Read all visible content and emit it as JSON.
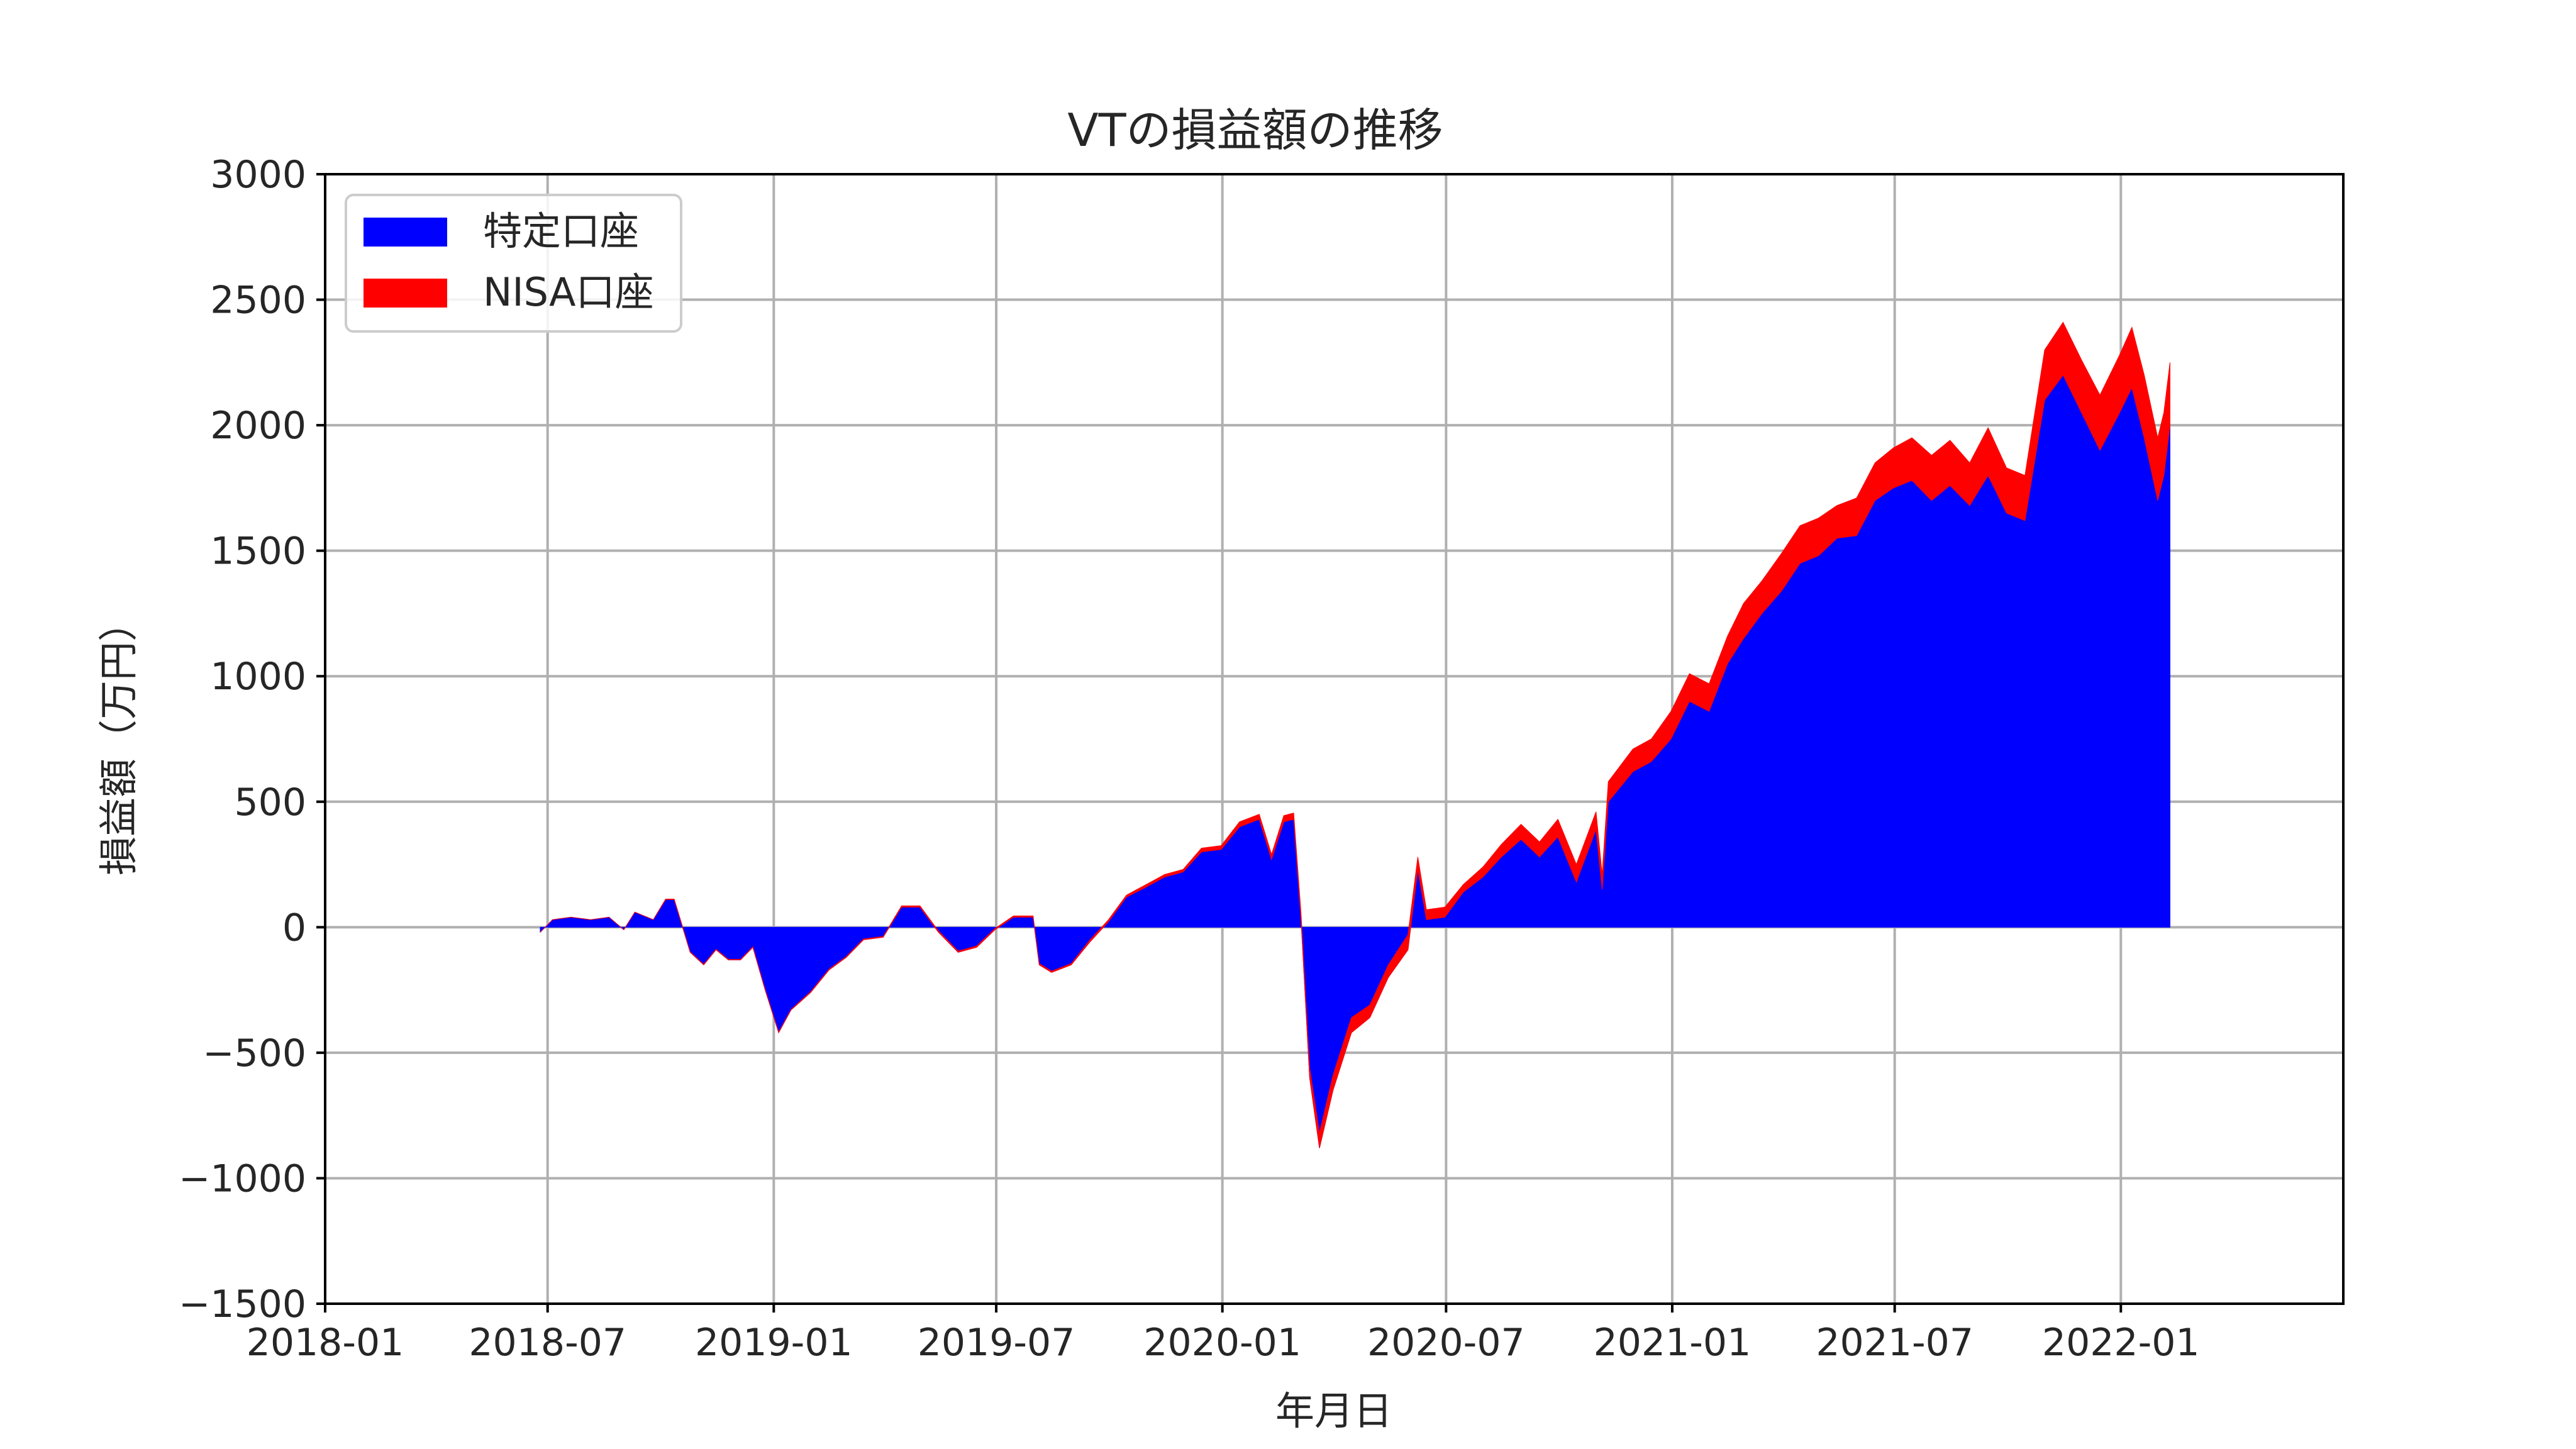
{
  "chart_data": {
    "type": "area",
    "stacked": true,
    "title": "VTの損益額の推移",
    "xlabel": "年月日",
    "ylabel": "損益額（万円）",
    "xlim": [
      "2018-01-01",
      "2022-07-01"
    ],
    "ylim": [
      -1500,
      3000
    ],
    "x_ticks": [
      "2018-01",
      "2018-07",
      "2019-01",
      "2019-07",
      "2020-01",
      "2020-07",
      "2021-01",
      "2021-07",
      "2022-01"
    ],
    "y_ticks": [
      3000,
      2500,
      2000,
      1500,
      1000,
      500,
      0,
      -500,
      -1000,
      -1500
    ],
    "y_tick_labels": [
      "3000",
      "2500",
      "2000",
      "1500",
      "1000",
      "500",
      "0",
      "−500",
      "−1000",
      "−1500"
    ],
    "grid": true,
    "legend_position": "upper-left",
    "colors": {
      "特定口座": "#0000ff",
      "NISA口座": "#ff0000",
      "grid": "#b0b0b0"
    },
    "dates": [
      "2018-06-25",
      "2018-07-05",
      "2018-07-20",
      "2018-08-05",
      "2018-08-20",
      "2018-09-01",
      "2018-09-10",
      "2018-09-25",
      "2018-10-05",
      "2018-10-12",
      "2018-10-25",
      "2018-11-05",
      "2018-11-15",
      "2018-11-25",
      "2018-12-05",
      "2018-12-15",
      "2018-12-25",
      "2019-01-05",
      "2019-01-15",
      "2019-01-31",
      "2019-02-15",
      "2019-03-01",
      "2019-03-15",
      "2019-03-31",
      "2019-04-15",
      "2019-04-30",
      "2019-05-15",
      "2019-05-31",
      "2019-06-15",
      "2019-06-30",
      "2019-07-15",
      "2019-07-31",
      "2019-08-05",
      "2019-08-15",
      "2019-08-31",
      "2019-09-15",
      "2019-09-30",
      "2019-10-15",
      "2019-10-31",
      "2019-11-15",
      "2019-11-30",
      "2019-12-15",
      "2019-12-31",
      "2020-01-15",
      "2020-01-31",
      "2020-02-10",
      "2020-02-20",
      "2020-02-28",
      "2020-03-05",
      "2020-03-12",
      "2020-03-20",
      "2020-03-31",
      "2020-04-15",
      "2020-04-30",
      "2020-05-15",
      "2020-05-31",
      "2020-06-08",
      "2020-06-15",
      "2020-06-30",
      "2020-07-15",
      "2020-07-31",
      "2020-08-15",
      "2020-08-31",
      "2020-09-15",
      "2020-09-30",
      "2020-10-15",
      "2020-10-31",
      "2020-11-05",
      "2020-11-10",
      "2020-11-30",
      "2020-12-15",
      "2020-12-31",
      "2021-01-15",
      "2021-01-31",
      "2021-02-15",
      "2021-02-28",
      "2021-03-15",
      "2021-03-31",
      "2021-04-15",
      "2021-04-30",
      "2021-05-15",
      "2021-05-31",
      "2021-06-15",
      "2021-06-30",
      "2021-07-15",
      "2021-07-31",
      "2021-08-15",
      "2021-08-31",
      "2021-09-15",
      "2021-09-30",
      "2021-10-15",
      "2021-10-31",
      "2021-11-15",
      "2021-11-30",
      "2021-12-15",
      "2021-12-31",
      "2022-01-10",
      "2022-01-20",
      "2022-01-31",
      "2022-02-05",
      "2022-02-10"
    ],
    "series": [
      {
        "name": "特定口座",
        "color": "#0000ff",
        "values": [
          -20,
          30,
          40,
          30,
          40,
          -10,
          60,
          30,
          110,
          110,
          -100,
          -150,
          -90,
          -130,
          -130,
          -80,
          -250,
          -420,
          -330,
          -260,
          -170,
          -120,
          -50,
          -40,
          80,
          80,
          -20,
          -100,
          -80,
          -10,
          40,
          40,
          -150,
          -180,
          -150,
          -60,
          20,
          120,
          160,
          200,
          220,
          300,
          310,
          400,
          430,
          270,
          420,
          430,
          30,
          -600,
          -880,
          -650,
          -420,
          -360,
          -200,
          -90,
          230,
          30,
          40,
          140,
          200,
          280,
          350,
          280,
          360,
          180,
          390,
          150,
          500,
          620,
          660,
          750,
          900,
          860,
          1050,
          1150,
          1250,
          1340,
          1450,
          1480,
          1550,
          1560,
          1700,
          1750,
          1780,
          1700,
          1760,
          1680,
          1800,
          1650,
          1620,
          2100,
          2200,
          2050,
          1900,
          2050,
          2150,
          1950,
          1700,
          1800,
          2000
        ]
      },
      {
        "name": "NISA口座",
        "color": "#ff0000",
        "values": [
          0,
          0,
          0,
          0,
          0,
          0,
          0,
          0,
          2,
          2,
          2,
          2,
          2,
          2,
          2,
          2,
          2,
          2,
          2,
          3,
          3,
          3,
          3,
          3,
          5,
          5,
          5,
          5,
          5,
          5,
          5,
          5,
          5,
          5,
          5,
          8,
          8,
          8,
          10,
          10,
          10,
          15,
          15,
          20,
          20,
          20,
          25,
          25,
          25,
          40,
          60,
          60,
          60,
          50,
          50,
          60,
          50,
          40,
          40,
          30,
          40,
          50,
          60,
          60,
          70,
          70,
          70,
          60,
          80,
          90,
          90,
          110,
          110,
          110,
          110,
          140,
          130,
          150,
          150,
          150,
          130,
          150,
          150,
          160,
          170,
          180,
          180,
          170,
          190,
          180,
          180,
          200,
          210,
          210,
          220,
          230,
          240,
          250,
          250,
          250,
          250
        ]
      }
    ]
  },
  "legend": {
    "item1": "特定口座",
    "item2": "NISA口座"
  }
}
